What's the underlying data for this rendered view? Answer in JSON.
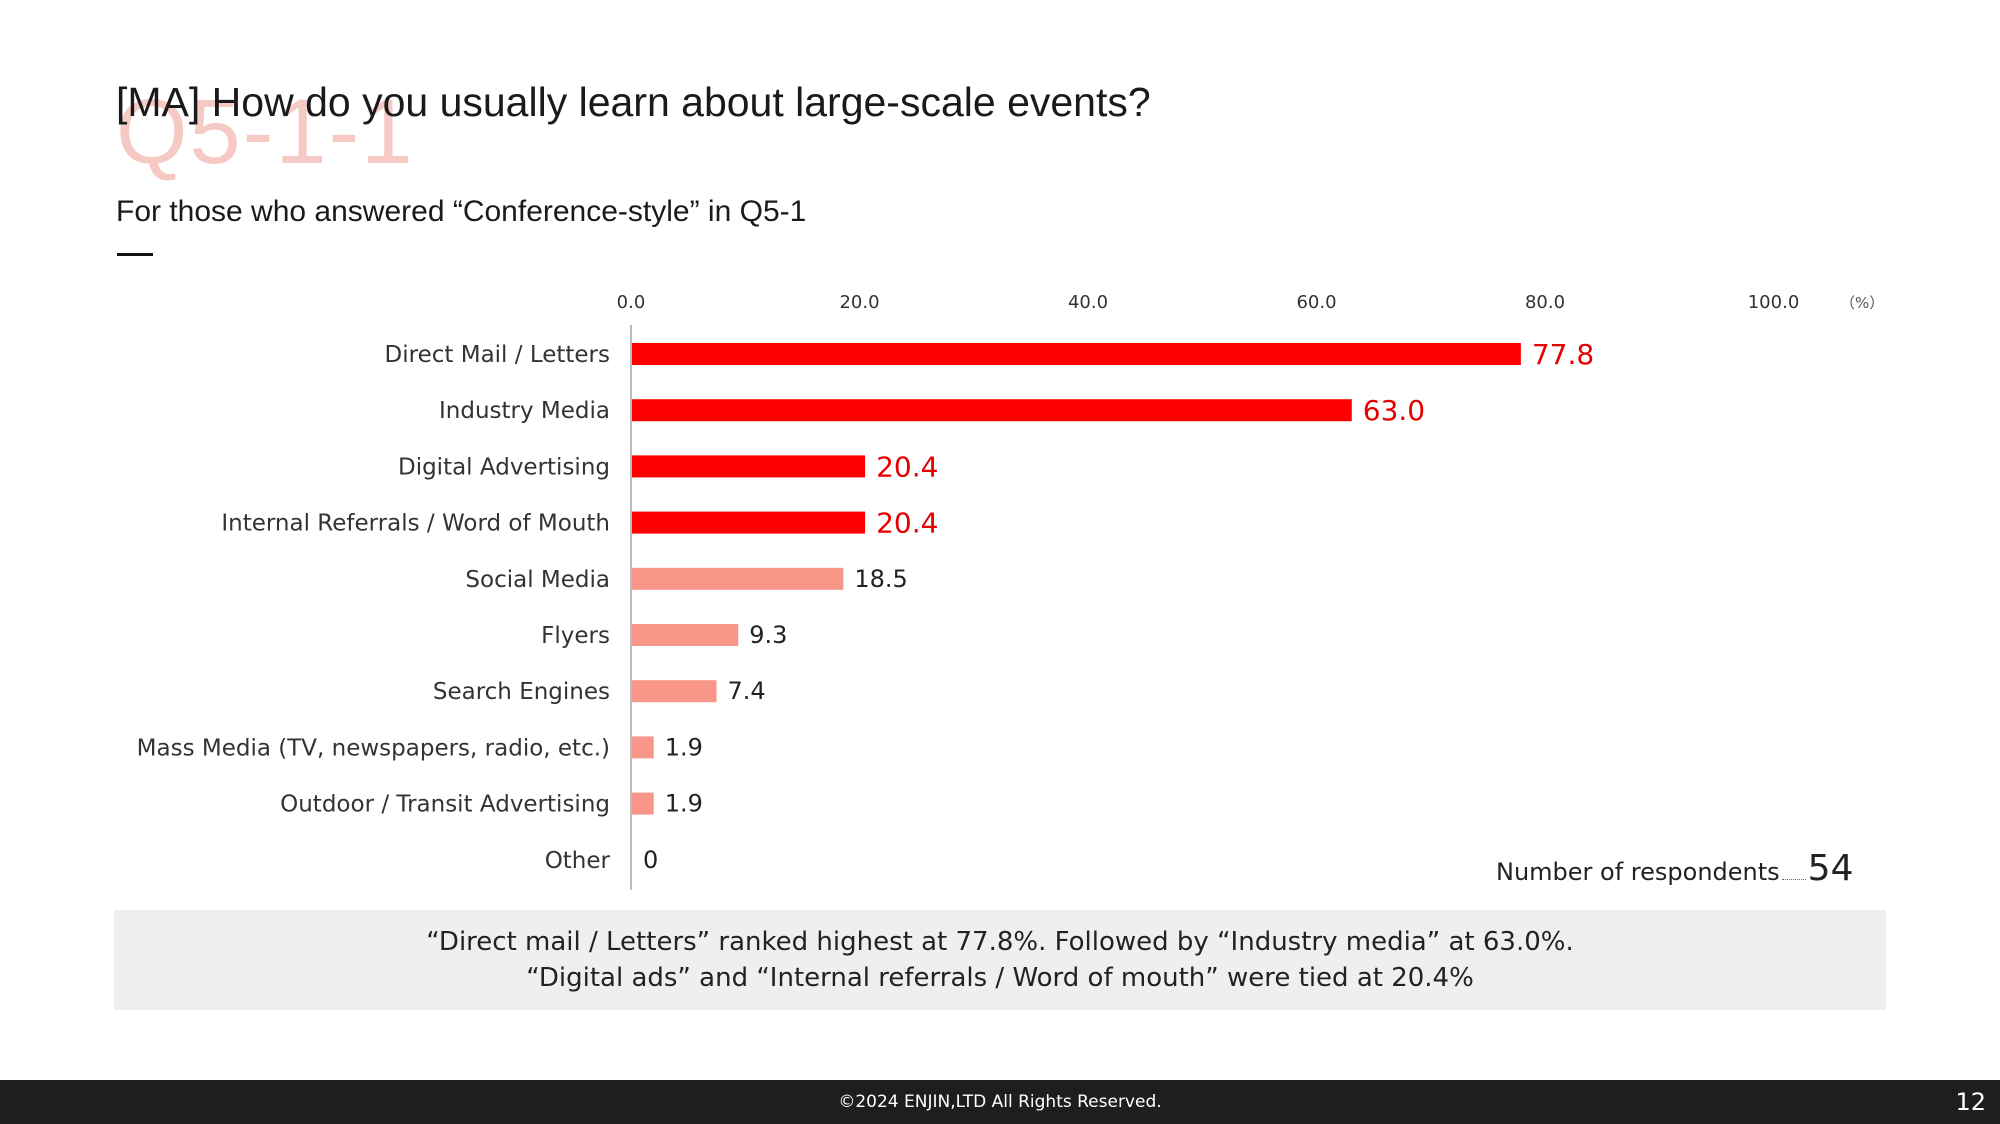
{
  "slide": {
    "watermark": "Q5-1-1",
    "title": "[MA] How do you usually learn about large-scale events?",
    "subtitle": "For those who answered “Conference-style” in Q5-1",
    "respondents_label": "Number of respondents",
    "respondents_count": "54",
    "summary_line1": "“Direct mail / Letters” ranked highest at 77.8%. Followed by “Industry media” at 63.0%.",
    "summary_line2": "“Digital ads” and “Internal referrals / Word of mouth” were tied at 20.4%",
    "footer_text": "©2024 ENJIN,LTD  All Rights Reserved.",
    "page_number": "12"
  },
  "colors": {
    "highlight_bar": "#ff0000",
    "highlight_label": "#e60000",
    "regular_bar": "#f8968a",
    "regular_label": "#222222",
    "axis": "#bbbbbb"
  },
  "chart_data": {
    "type": "bar",
    "orientation": "horizontal",
    "unit_label": "（%）",
    "xlim": [
      0,
      100
    ],
    "ticks": [
      "0.0",
      "20.0",
      "40.0",
      "60.0",
      "80.0",
      "100.0"
    ],
    "categories": [
      "Direct Mail / Letters",
      "Industry Media",
      "Digital Advertising",
      "Internal Referrals / Word of Mouth",
      "Social Media",
      "Flyers",
      "Search Engines",
      "Mass Media (TV, newspapers, radio, etc.)",
      "Outdoor / Transit Advertising",
      "Other"
    ],
    "values": [
      77.8,
      63.0,
      20.4,
      20.4,
      18.5,
      9.3,
      7.4,
      1.9,
      1.9,
      0
    ],
    "value_labels": [
      "77.8",
      "63.0",
      "20.4",
      "20.4",
      "18.5",
      "9.3",
      "7.4",
      "1.9",
      "1.9",
      "0"
    ],
    "highlighted": [
      true,
      true,
      true,
      true,
      false,
      false,
      false,
      false,
      false,
      false
    ],
    "grid": false
  }
}
